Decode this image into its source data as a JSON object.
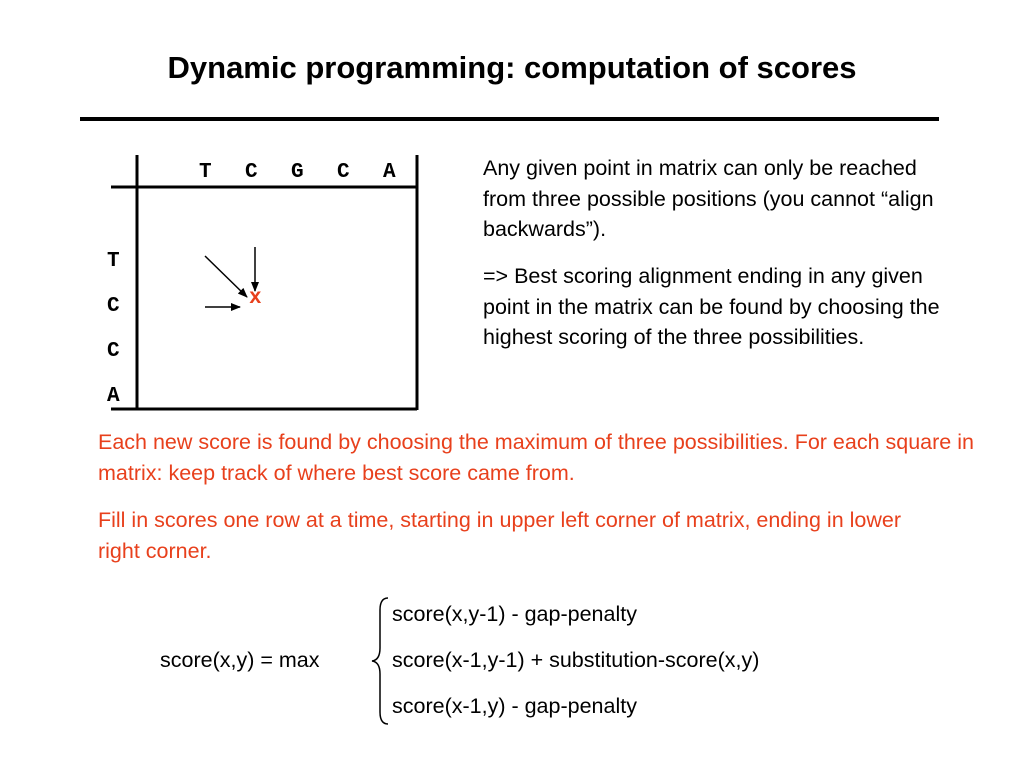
{
  "title": "Dynamic programming: computation of scores",
  "matrix": {
    "columns": [
      "T",
      "C",
      "G",
      "C",
      "A"
    ],
    "rows": [
      "T",
      "C",
      "C",
      "A"
    ],
    "cell_marker": "x"
  },
  "description": [
    "Any given point in matrix can only be reached from three possible positions (you cannot “align backwards”).",
    "=> Best scoring alignment ending in any given point in the matrix can be found by choosing the highest scoring of the three possibilities."
  ],
  "notes": [
    "Each new score is found by choosing the maximum of three possibilities. For each square in matrix: keep track of where best score came from.",
    "Fill in scores one row at a time, starting in upper left corner of matrix, ending in lower right corner."
  ],
  "formula": {
    "lhs": "score(x,y) = max",
    "cases": [
      "score(x,y-1) - gap-penalty",
      "score(x-1,y-1) + substitution-score(x,y)",
      "score(x-1,y) - gap-penalty"
    ]
  },
  "colors": {
    "accent_red": "#e8401c",
    "text": "#000000"
  }
}
